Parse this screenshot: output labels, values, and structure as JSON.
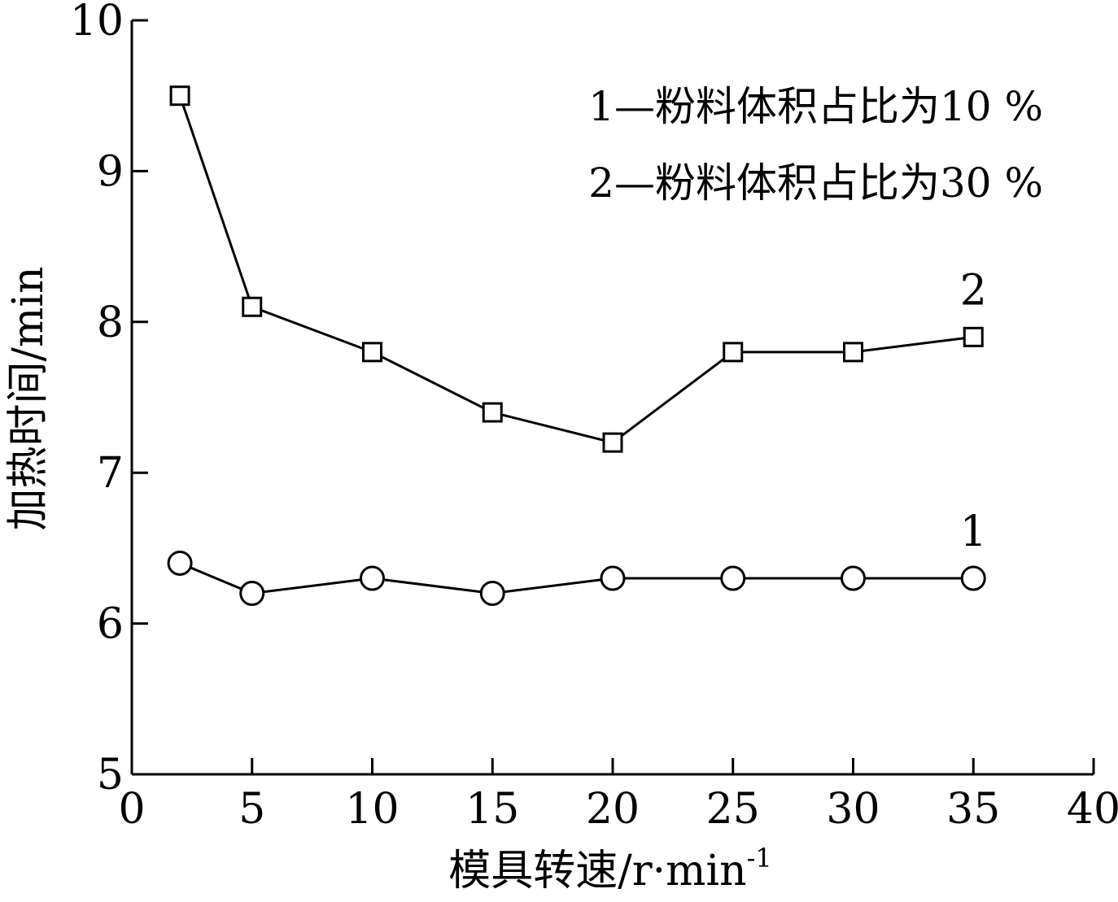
{
  "chart_data": {
    "type": "line",
    "xlabel": "模具转速/r·min",
    "xlabel_superscript": "-1",
    "ylabel": "加热时间/min",
    "xlim": [
      0,
      40
    ],
    "ylim": [
      5,
      10
    ],
    "xticks": [
      0,
      5,
      10,
      15,
      20,
      25,
      30,
      35,
      40
    ],
    "yticks": [
      5,
      6,
      7,
      8,
      9,
      10
    ],
    "grid": false,
    "legend_placement": "top-right",
    "legend": [
      {
        "text": "1—粉料体积占比为10 %"
      },
      {
        "text": "2—粉料体积占比为30 %"
      }
    ],
    "series": [
      {
        "name": "1",
        "marker": "circle",
        "x": [
          2,
          5,
          10,
          15,
          20,
          25,
          30,
          35
        ],
        "y": [
          6.4,
          6.2,
          6.3,
          6.2,
          6.3,
          6.3,
          6.3,
          6.3
        ]
      },
      {
        "name": "2",
        "marker": "square",
        "x": [
          2,
          5,
          10,
          15,
          20,
          25,
          30,
          35
        ],
        "y": [
          9.5,
          8.1,
          7.8,
          7.4,
          7.2,
          7.8,
          7.8,
          7.9
        ]
      }
    ]
  }
}
